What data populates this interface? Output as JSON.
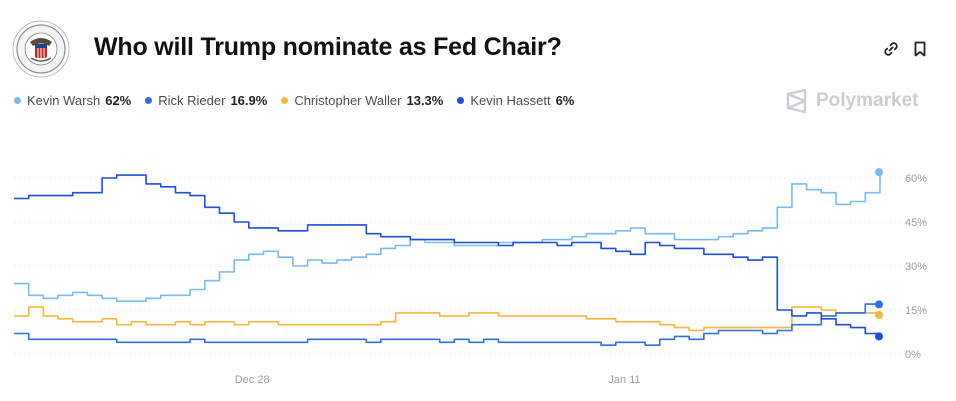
{
  "header": {
    "title": "Who will Trump nominate as Fed Chair?",
    "brand": "Polymarket"
  },
  "legend": [
    {
      "name": "Kevin Warsh",
      "value": "62%",
      "color": "#7cb9ef"
    },
    {
      "name": "Rick Rieder",
      "value": "16.9%",
      "color": "#2f6fe0"
    },
    {
      "name": "Christopher Waller",
      "value": "13.3%",
      "color": "#f4b73f"
    },
    {
      "name": "Kevin Hassett",
      "value": "6%",
      "color": "#1f4ed8"
    }
  ],
  "chart_data": {
    "type": "line",
    "x_ticks": [
      "Dec 28",
      "Jan 11"
    ],
    "y_ticks": [
      "0%",
      "15%",
      "30%",
      "45%",
      "60%"
    ],
    "ylim": [
      0,
      60
    ],
    "grid": true,
    "series": [
      {
        "name": "Kevin Warsh",
        "color": "#7cb9ef",
        "values": [
          24,
          20,
          19,
          20,
          21,
          20,
          19,
          18,
          18,
          19,
          20,
          20,
          22,
          25,
          28,
          32,
          34,
          35,
          33,
          30,
          32,
          31,
          32,
          33,
          34,
          36,
          37,
          39,
          38,
          38,
          37,
          37,
          37,
          38,
          38,
          38,
          39,
          39,
          40,
          41,
          41,
          42,
          43,
          41,
          41,
          39,
          39,
          39,
          40,
          41,
          42,
          43,
          50,
          58,
          56,
          55,
          51,
          52,
          55,
          62
        ]
      },
      {
        "name": "Rick Rieder",
        "color": "#2f6fe0",
        "values": [
          7,
          5,
          5,
          5,
          5,
          5,
          5,
          4,
          4,
          4,
          4,
          4,
          5,
          4,
          4,
          4,
          4,
          4,
          4,
          4,
          5,
          5,
          5,
          5,
          4,
          5,
          5,
          5,
          5,
          4,
          5,
          4,
          5,
          4,
          4,
          4,
          4,
          4,
          4,
          4,
          3,
          4,
          4,
          3,
          5,
          6,
          5,
          7,
          8,
          8,
          8,
          7,
          8,
          10,
          10,
          13,
          14,
          14,
          17,
          16.9
        ]
      },
      {
        "name": "Christopher Waller",
        "color": "#f4b73f",
        "values": [
          13,
          16,
          13,
          12,
          11,
          11,
          12,
          10,
          11,
          10,
          10,
          11,
          10,
          11,
          11,
          10,
          11,
          11,
          10,
          10,
          10,
          10,
          10,
          10,
          10,
          11,
          14,
          14,
          14,
          13,
          13,
          14,
          14,
          13,
          13,
          13,
          13,
          13,
          13,
          12,
          12,
          11,
          11,
          11,
          10,
          9,
          8,
          9,
          9,
          9,
          9,
          9,
          9,
          16,
          16,
          15,
          14,
          14,
          14,
          13.3
        ]
      },
      {
        "name": "Kevin Hassett",
        "color": "#1f4ed8",
        "values": [
          53,
          54,
          54,
          54,
          55,
          55,
          60,
          61,
          61,
          58,
          57,
          55,
          54,
          50,
          48,
          45,
          43,
          43,
          42,
          42,
          44,
          44,
          44,
          44,
          41,
          40,
          40,
          39,
          39,
          39,
          38,
          38,
          38,
          37,
          38,
          38,
          38,
          37,
          38,
          38,
          36,
          35,
          34,
          38,
          37,
          36,
          36,
          34,
          34,
          33,
          32,
          33,
          15,
          13,
          14,
          12,
          10,
          9,
          7,
          6
        ]
      }
    ]
  }
}
